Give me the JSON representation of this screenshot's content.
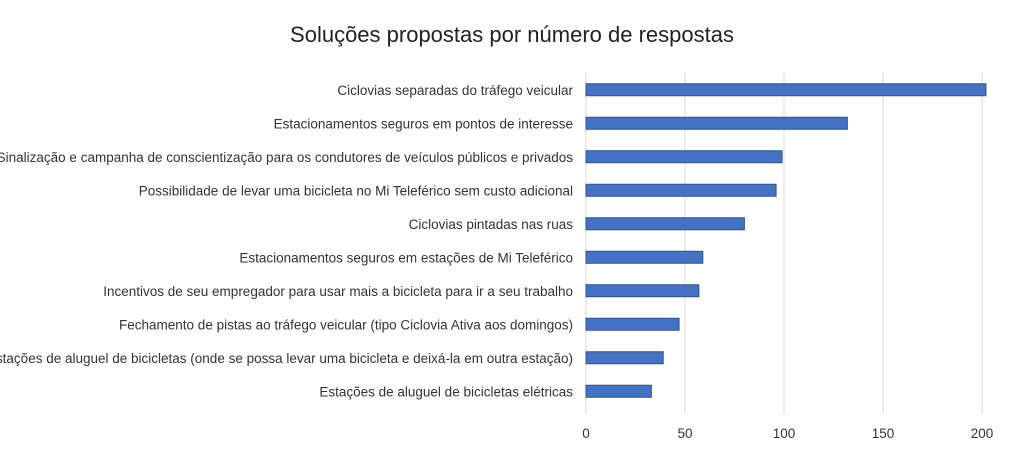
{
  "chart_data": {
    "type": "bar",
    "orientation": "horizontal",
    "title": "Soluções propostas por número de respostas",
    "xlabel": "",
    "ylabel": "",
    "categories": [
      "Ciclovias separadas do tráfego veicular",
      "Estacionamentos seguros em pontos de interesse",
      "Sinalização e campanha de conscientização para os condutores de veículos públicos e privados",
      "Possibilidade de levar uma bicicleta no Mi Teleférico sem custo adicional",
      "Ciclovias pintadas nas ruas",
      "Estacionamentos seguros em estações de Mi Teleférico",
      "Incentivos de seu empregador para usar mais a bicicleta para ir a seu trabalho",
      "Fechamento de pistas ao tráfego veicular (tipo Ciclovia Ativa aos domingos)",
      "Estações de aluguel de bicicletas (onde se possa levar uma bicicleta e deixá-la em outra estação)",
      "Estações de aluguel de bicicletas elétricas"
    ],
    "values": [
      202,
      132,
      99,
      96,
      80,
      59,
      57,
      47,
      39,
      33
    ],
    "xlim": [
      0,
      200
    ],
    "xticks": [
      0,
      50,
      100,
      150,
      200
    ],
    "grid": "vertical",
    "legend": "none",
    "bar_color": "#4472C4",
    "bar_edge_color": "#2F528F",
    "grid_color": "#D9D9D9"
  }
}
